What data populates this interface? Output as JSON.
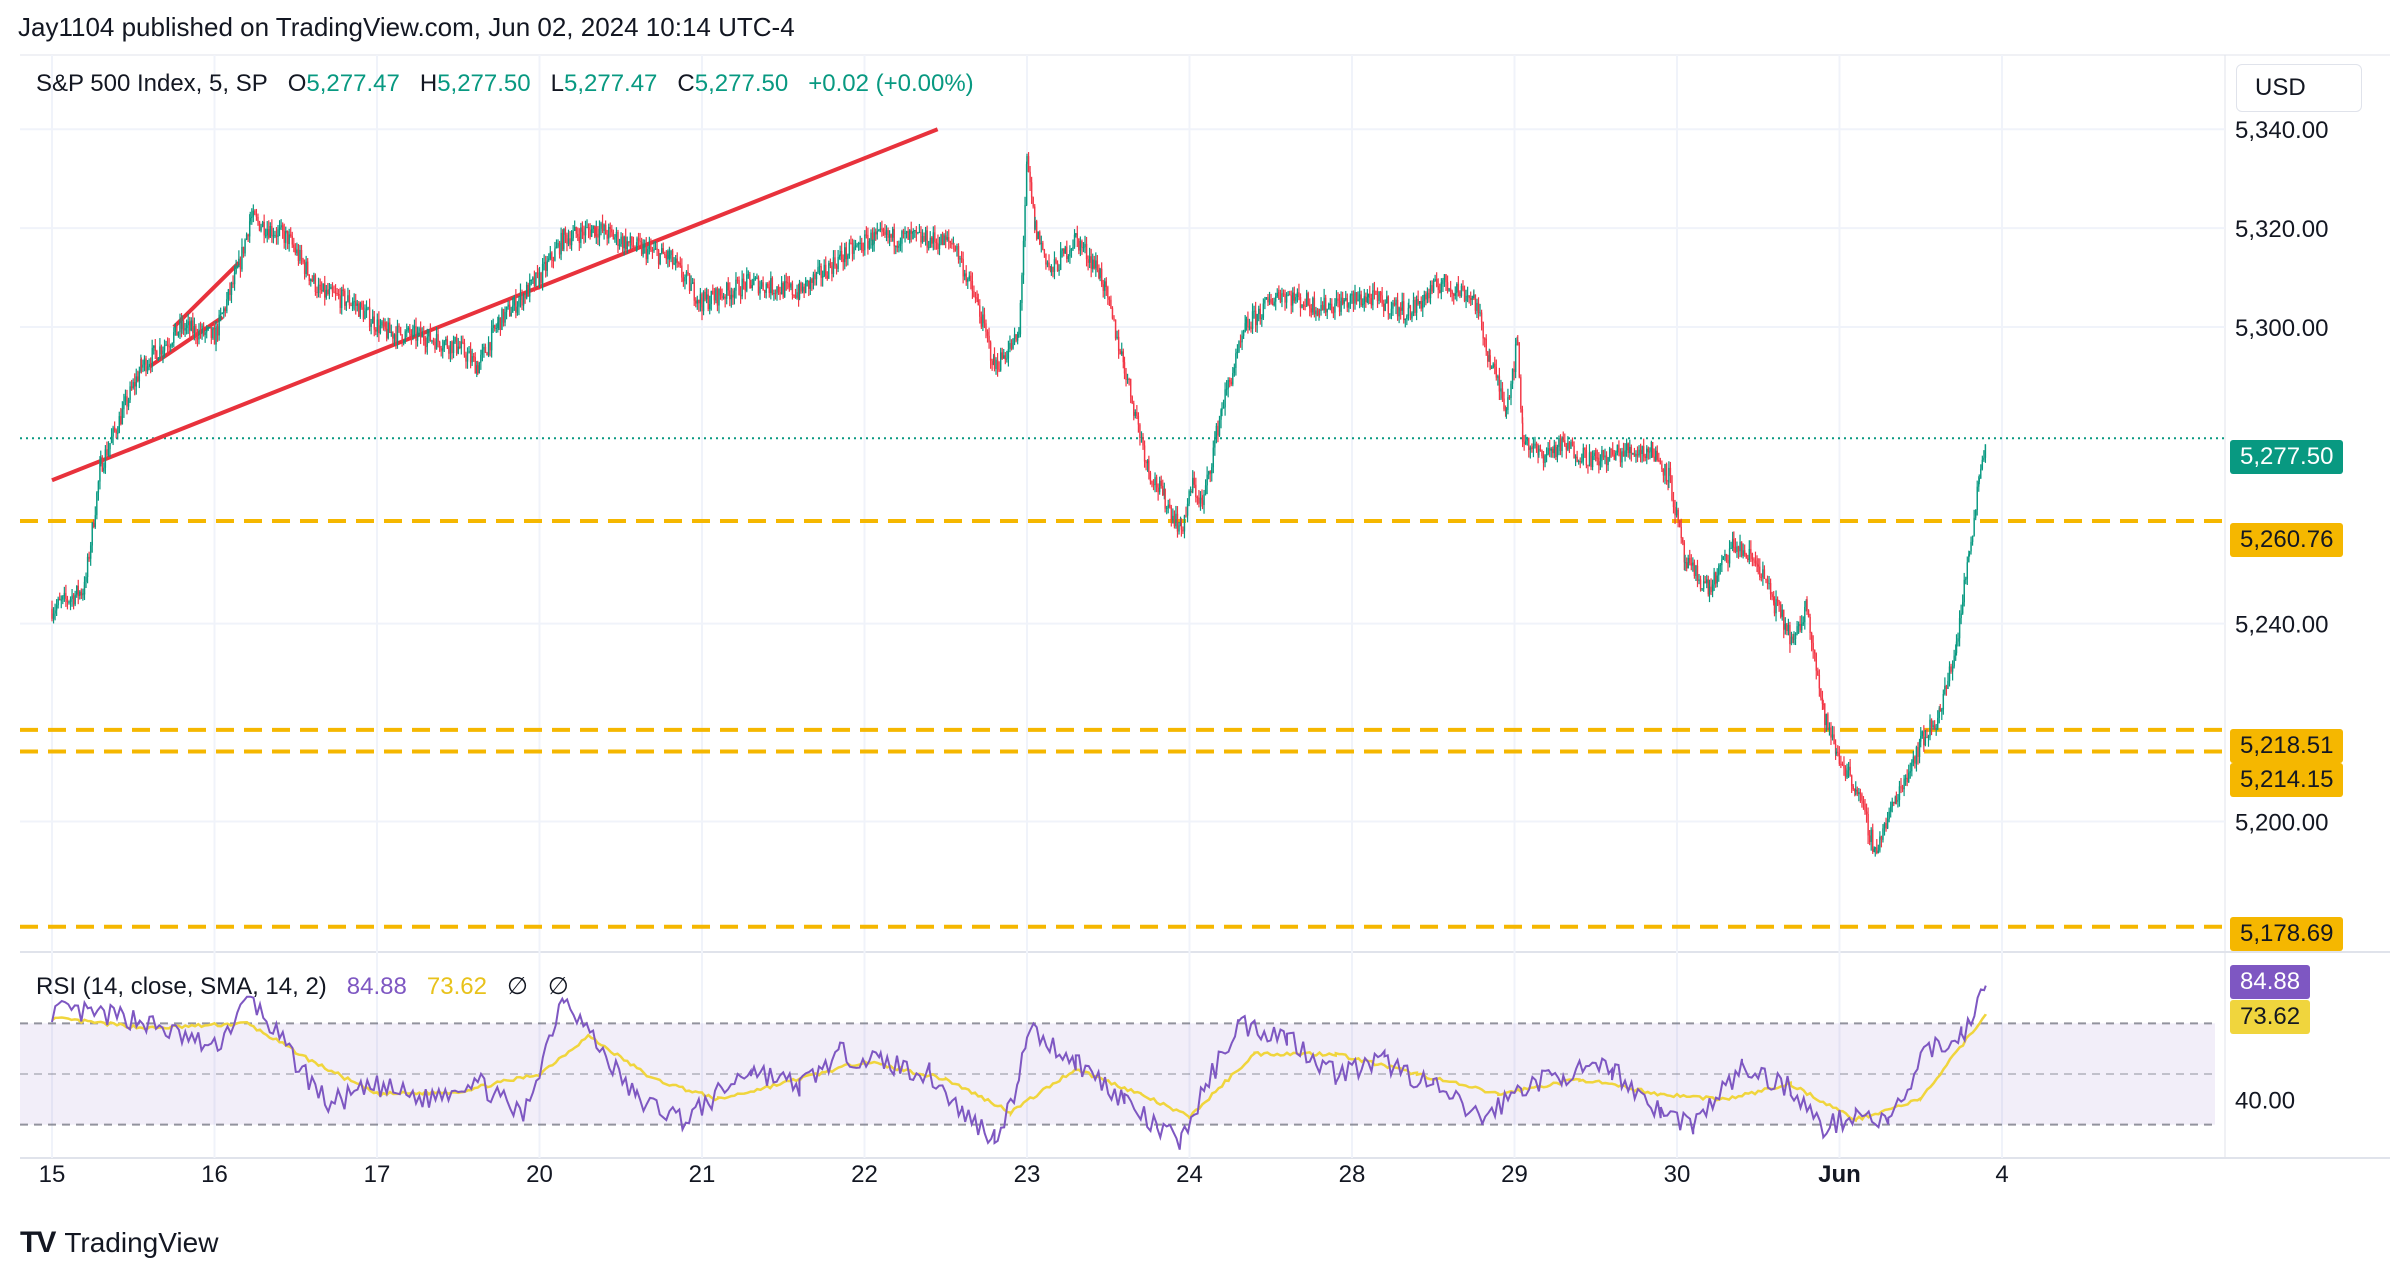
{
  "publisher_line": "Jay1104 published on TradingView.com, Jun 02, 2024 10:14 UTC-4",
  "legend": {
    "symbol": "S&P 500 Index, 5, SP",
    "o_label": "O",
    "o_value": "5,277.47",
    "h_label": "H",
    "h_value": "5,277.50",
    "l_label": "L",
    "l_value": "5,277.47",
    "c_label": "C",
    "c_value": "5,277.50",
    "change": "+0.02 (+0.00%)"
  },
  "currency_button": "USD",
  "rsi_legend": {
    "label": "RSI (14, close, SMA, 14, 2)",
    "rsi_value": "84.88",
    "sma_value": "73.62",
    "icons": [
      "∅",
      "∅"
    ]
  },
  "brand": {
    "logo": "TV",
    "name": "TradingView"
  },
  "colors": {
    "up": "#089981",
    "down": "#f23645",
    "hline": "#f5b700",
    "trend": "#e8323c",
    "rsi": "#7e57c2",
    "rsi_sma": "#f0d53d",
    "current_badge": "#089981"
  },
  "chart_data": {
    "type": "candlestick",
    "interval_minutes": 5,
    "price_axis_ticks": [
      "5,340.00",
      "5,320.00",
      "5,300.00",
      "5,240.00",
      "5,200.00"
    ],
    "price_axis_ticks_num": [
      5340,
      5320,
      5300,
      5240,
      5200
    ],
    "y_range": [
      5174,
      5354
    ],
    "x_ticks": [
      "15",
      "16",
      "17",
      "20",
      "21",
      "22",
      "23",
      "24",
      "28",
      "29",
      "30",
      "Jun",
      "4"
    ],
    "current_price": {
      "label": "5,277.50",
      "value": 5277.5
    },
    "horizontal_levels": [
      {
        "label": "5,260.76",
        "value": 5260.76
      },
      {
        "label": "5,218.51",
        "value": 5218.51
      },
      {
        "label": "5,214.15",
        "value": 5214.15
      },
      {
        "label": "5,178.69",
        "value": 5178.69
      }
    ],
    "close_path": [
      [
        0.0,
        5243
      ],
      [
        0.2,
        5247
      ],
      [
        0.3,
        5272
      ],
      [
        0.55,
        5292
      ],
      [
        0.8,
        5300
      ],
      [
        1.0,
        5298
      ],
      [
        1.15,
        5312
      ],
      [
        1.22,
        5322
      ],
      [
        1.45,
        5318
      ],
      [
        1.65,
        5307
      ],
      [
        1.85,
        5305
      ],
      [
        2.05,
        5299
      ],
      [
        2.3,
        5298
      ],
      [
        2.5,
        5296
      ],
      [
        2.62,
        5292
      ],
      [
        2.75,
        5301
      ],
      [
        3.0,
        5310
      ],
      [
        3.15,
        5318
      ],
      [
        3.35,
        5320
      ],
      [
        3.6,
        5316
      ],
      [
        3.8,
        5314
      ],
      [
        4.0,
        5305
      ],
      [
        4.3,
        5309
      ],
      [
        4.6,
        5307
      ],
      [
        4.85,
        5314
      ],
      [
        5.05,
        5318
      ],
      [
        5.3,
        5318
      ],
      [
        5.55,
        5317
      ],
      [
        5.7,
        5304
      ],
      [
        5.8,
        5292
      ],
      [
        5.95,
        5298
      ],
      [
        6.0,
        5333
      ],
      [
        6.05,
        5320
      ],
      [
        6.15,
        5311
      ],
      [
        6.3,
        5318
      ],
      [
        6.45,
        5311
      ],
      [
        6.6,
        5292
      ],
      [
        6.75,
        5271
      ],
      [
        6.85,
        5265
      ],
      [
        6.95,
        5259
      ],
      [
        7.02,
        5268
      ],
      [
        7.08,
        5264
      ],
      [
        7.2,
        5284
      ],
      [
        7.35,
        5300
      ],
      [
        7.55,
        5307
      ],
      [
        7.8,
        5304
      ],
      [
        8.1,
        5306
      ],
      [
        8.35,
        5303
      ],
      [
        8.55,
        5309
      ],
      [
        8.75,
        5306
      ],
      [
        8.85,
        5293
      ],
      [
        8.95,
        5284
      ],
      [
        9.02,
        5297
      ],
      [
        9.05,
        5278
      ],
      [
        9.15,
        5274
      ],
      [
        9.3,
        5276
      ],
      [
        9.5,
        5273
      ],
      [
        9.7,
        5275
      ],
      [
        9.85,
        5275
      ],
      [
        9.95,
        5270
      ],
      [
        10.05,
        5252
      ],
      [
        10.2,
        5247
      ],
      [
        10.35,
        5256
      ],
      [
        10.5,
        5252
      ],
      [
        10.6,
        5244
      ],
      [
        10.72,
        5236
      ],
      [
        10.8,
        5244
      ],
      [
        10.9,
        5222
      ],
      [
        10.98,
        5214
      ],
      [
        11.1,
        5207
      ],
      [
        11.22,
        5194
      ],
      [
        11.35,
        5205
      ],
      [
        11.5,
        5216
      ],
      [
        11.62,
        5222
      ],
      [
        11.72,
        5236
      ],
      [
        11.8,
        5255
      ],
      [
        11.86,
        5270
      ],
      [
        11.9,
        5277.5
      ]
    ],
    "trend_lines": [
      {
        "from": [
          0.0,
          5269
        ],
        "to": [
          5.45,
          5340
        ]
      },
      {
        "from": [
          0.6,
          5292
        ],
        "to": [
          1.05,
          5302
        ]
      },
      {
        "from": [
          0.75,
          5300
        ],
        "to": [
          1.15,
          5313
        ]
      }
    ],
    "rsi_panel": {
      "levels": [
        70,
        50,
        30
      ],
      "level_tick": "40.00",
      "y_range": [
        20,
        95
      ],
      "rsi_path": [
        [
          0.0,
          75
        ],
        [
          0.5,
          72
        ],
        [
          1.0,
          60
        ],
        [
          1.22,
          80
        ],
        [
          1.5,
          55
        ],
        [
          1.7,
          38
        ],
        [
          2.0,
          45
        ],
        [
          2.3,
          40
        ],
        [
          2.6,
          48
        ],
        [
          2.9,
          33
        ],
        [
          3.15,
          82
        ],
        [
          3.35,
          62
        ],
        [
          3.6,
          40
        ],
        [
          3.9,
          32
        ],
        [
          4.3,
          52
        ],
        [
          4.6,
          45
        ],
        [
          4.85,
          58
        ],
        [
          5.1,
          55
        ],
        [
          5.4,
          50
        ],
        [
          5.6,
          35
        ],
        [
          5.8,
          25
        ],
        [
          5.95,
          45
        ],
        [
          6.0,
          68
        ],
        [
          6.3,
          55
        ],
        [
          6.6,
          40
        ],
        [
          6.8,
          28
        ],
        [
          6.95,
          24
        ],
        [
          7.1,
          45
        ],
        [
          7.3,
          70
        ],
        [
          7.6,
          65
        ],
        [
          7.9,
          50
        ],
        [
          8.2,
          55
        ],
        [
          8.5,
          45
        ],
        [
          8.8,
          32
        ],
        [
          9.05,
          45
        ],
        [
          9.3,
          50
        ],
        [
          9.6,
          52
        ],
        [
          9.9,
          35
        ],
        [
          10.1,
          30
        ],
        [
          10.4,
          52
        ],
        [
          10.7,
          45
        ],
        [
          10.9,
          28
        ],
        [
          11.1,
          35
        ],
        [
          11.3,
          30
        ],
        [
          11.55,
          60
        ],
        [
          11.75,
          65
        ],
        [
          11.9,
          84.88
        ]
      ],
      "sma_path": [
        [
          0.0,
          72
        ],
        [
          0.6,
          68
        ],
        [
          1.2,
          70
        ],
        [
          1.6,
          55
        ],
        [
          2.0,
          42
        ],
        [
          2.5,
          43
        ],
        [
          3.0,
          50
        ],
        [
          3.3,
          65
        ],
        [
          3.7,
          48
        ],
        [
          4.1,
          40
        ],
        [
          4.6,
          48
        ],
        [
          5.0,
          55
        ],
        [
          5.5,
          48
        ],
        [
          5.9,
          35
        ],
        [
          6.3,
          52
        ],
        [
          6.7,
          42
        ],
        [
          7.0,
          33
        ],
        [
          7.4,
          58
        ],
        [
          7.9,
          58
        ],
        [
          8.4,
          50
        ],
        [
          8.9,
          42
        ],
        [
          9.4,
          48
        ],
        [
          9.9,
          42
        ],
        [
          10.3,
          40
        ],
        [
          10.7,
          46
        ],
        [
          11.1,
          32
        ],
        [
          11.5,
          40
        ],
        [
          11.9,
          73.62
        ]
      ]
    }
  }
}
